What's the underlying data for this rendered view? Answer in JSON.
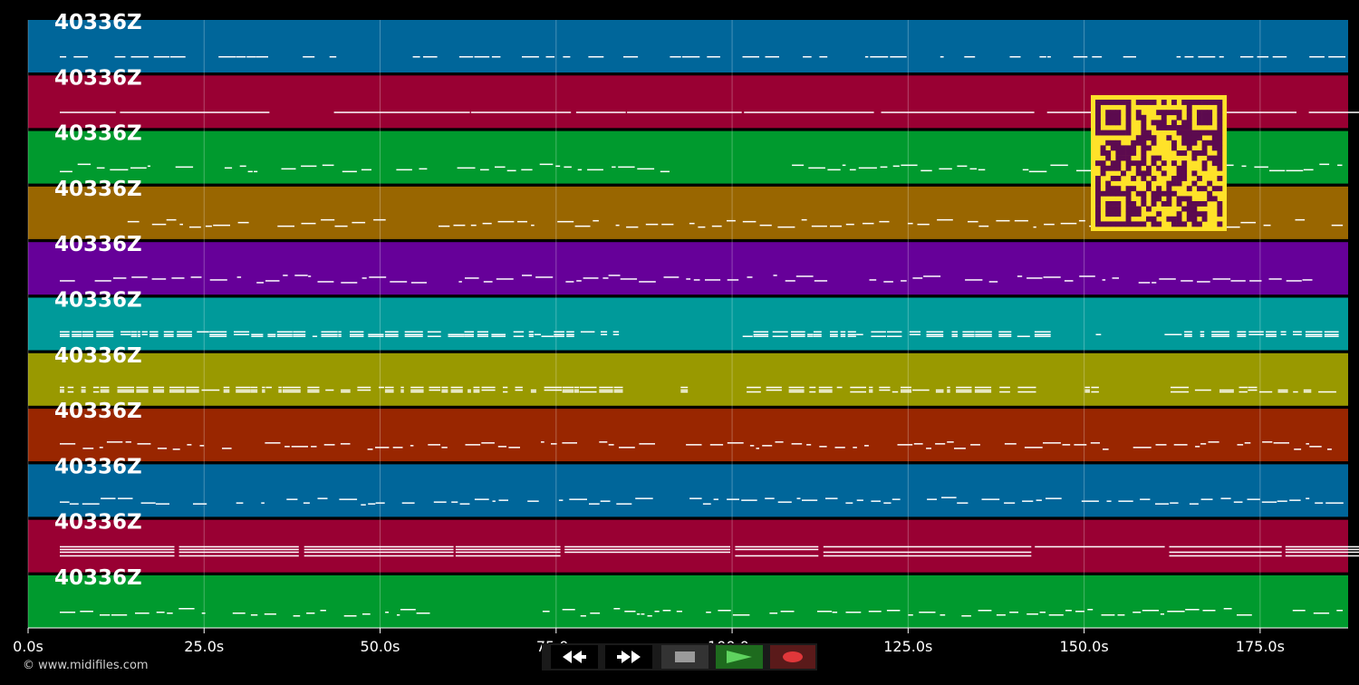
{
  "app": {
    "track_label": "40336Z",
    "copyright": "© www.midifiles.com"
  },
  "timeline": {
    "xmin": 0,
    "xmax": 187.5,
    "ticks": [
      {
        "value": 0,
        "label": "0.0s"
      },
      {
        "value": 25,
        "label": "25.0s"
      },
      {
        "value": 50,
        "label": "50.0s"
      },
      {
        "value": 75,
        "label": "75.0s"
      },
      {
        "value": 100,
        "label": "100.0s"
      },
      {
        "value": 125,
        "label": "125.0s"
      },
      {
        "value": 150,
        "label": "150.0s"
      },
      {
        "value": 175,
        "label": "175.0s"
      }
    ]
  },
  "tracks": [
    {
      "label": "40336Z",
      "color": "#00669a"
    },
    {
      "label": "40336Z",
      "color": "#990033"
    },
    {
      "label": "40336Z",
      "color": "#009a2e"
    },
    {
      "label": "40336Z",
      "color": "#996600"
    },
    {
      "label": "40336Z",
      "color": "#660099"
    },
    {
      "label": "40336Z",
      "color": "#009a9a"
    },
    {
      "label": "40336Z",
      "color": "#999900"
    },
    {
      "label": "40336Z",
      "color": "#992600"
    },
    {
      "label": "40336Z",
      "color": "#00669a"
    },
    {
      "label": "40336Z",
      "color": "#990033"
    },
    {
      "label": "40336Z",
      "color": "#009a2e"
    }
  ],
  "controls": [
    {
      "name": "rewind-button",
      "icon": "rewind-icon",
      "bg": "#000000"
    },
    {
      "name": "fast-forward-button",
      "icon": "fast-forward-icon",
      "bg": "#000000"
    },
    {
      "name": "stop-button",
      "icon": "stop-icon",
      "bg": "#333333"
    },
    {
      "name": "play-button",
      "icon": "play-icon",
      "bg": "#1e6b1e"
    },
    {
      "name": "record-button",
      "icon": "record-icon",
      "bg": "#5a1a1a"
    }
  ],
  "colors": {
    "background": "#000000",
    "note": "#ffffff",
    "qr_bg": "#ffe229",
    "qr_fg": "#5c0a4f"
  }
}
